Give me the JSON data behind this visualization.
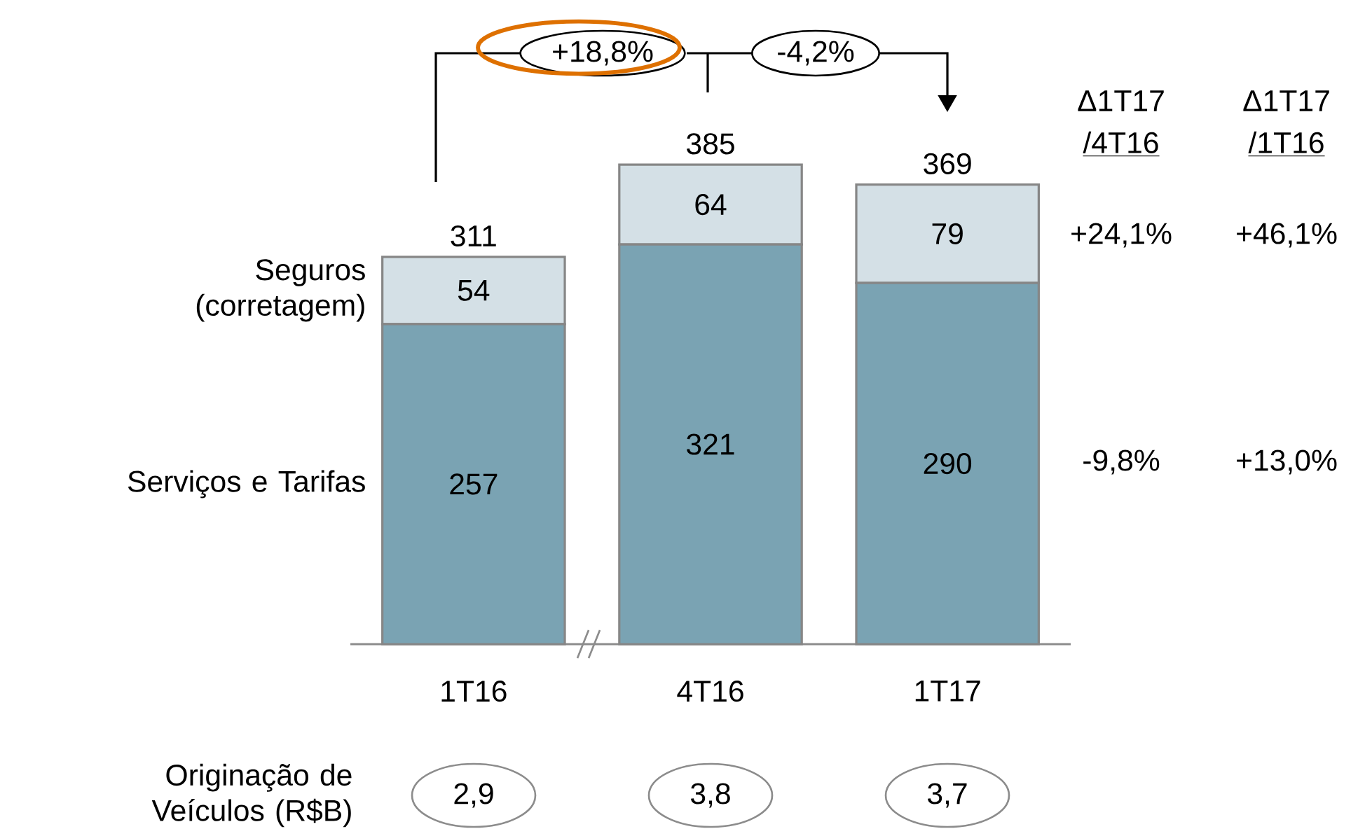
{
  "chart_data": {
    "type": "bar",
    "stacked": true,
    "categories": [
      "1T16",
      "4T16",
      "1T17"
    ],
    "series": [
      {
        "name": "Serviços e Tarifas",
        "color": "#7aa3b3",
        "values": [
          257,
          321,
          290
        ]
      },
      {
        "name": "Seguros (corretagem)",
        "color": "#d4e0e6",
        "values": [
          54,
          64,
          79
        ]
      }
    ],
    "totals": [
      "311",
      "385",
      "369"
    ],
    "data_labels": true,
    "annotations": [
      "+18,8%",
      "-4,2%",
      "Δ1T17",
      "/4T16",
      "Δ1T17",
      "/1T16",
      "+24,1%",
      "+46,1%",
      "-9,8%",
      "+13,0%",
      "Originação de Veículos (R$B)",
      "2,9",
      "3,8",
      "3,7"
    ]
  }
}
